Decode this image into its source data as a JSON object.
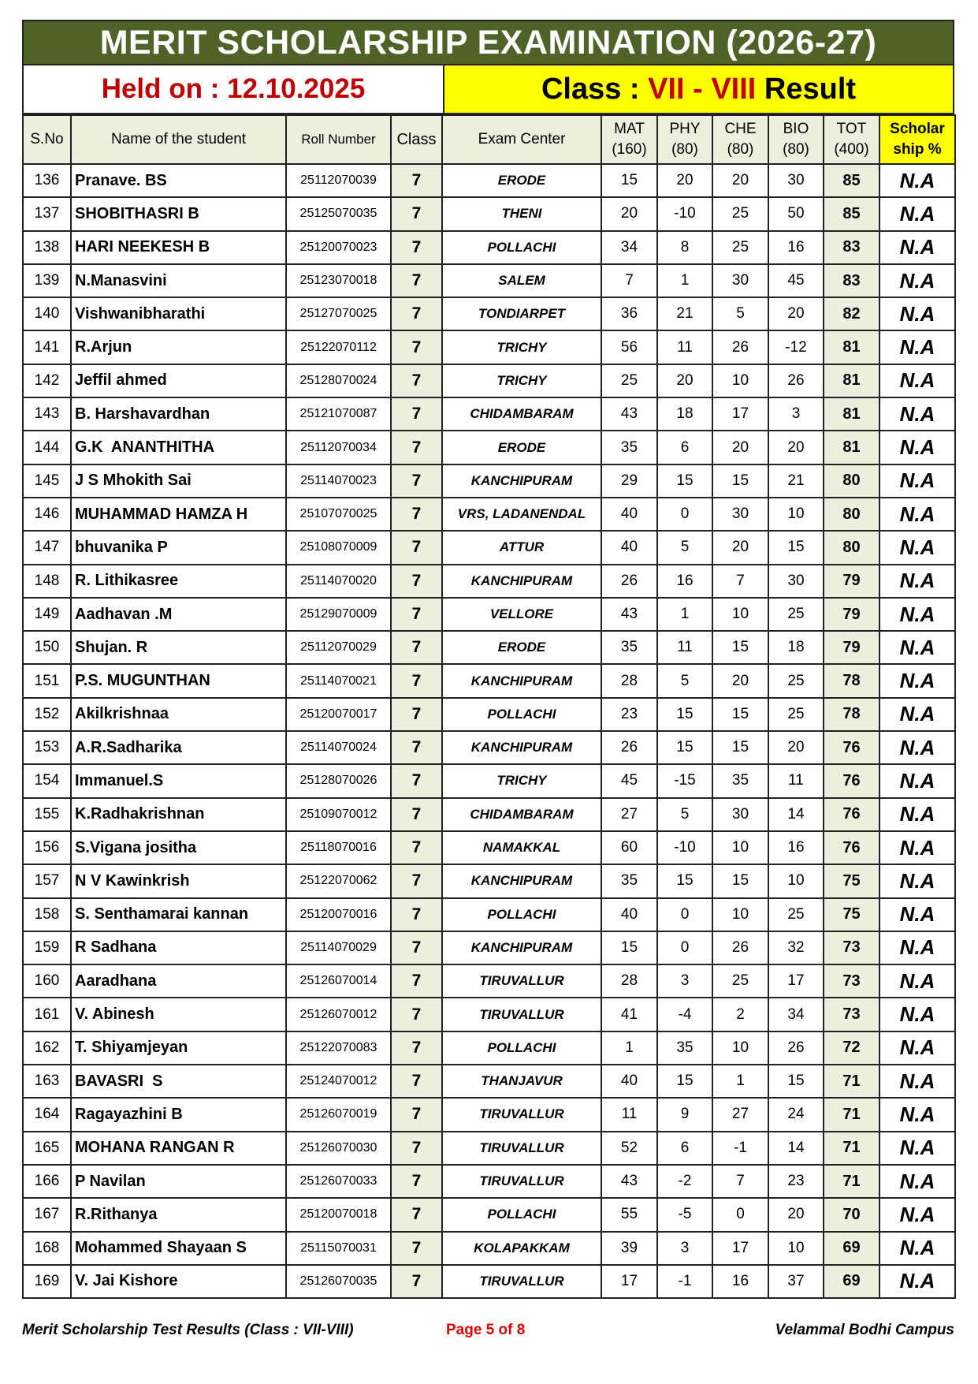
{
  "title": "MERIT SCHOLARSHIP EXAMINATION (2026-27)",
  "held_on": "Held on : 12.10.2025",
  "class_label": {
    "prefix": "Class : ",
    "classes": "VII - VIII",
    "suffix": " Result"
  },
  "colors": {
    "title_bg": "#4f6228",
    "highlight_yellow": "#ffff00",
    "red": "#c00000",
    "cell_green": "#ebf1de"
  },
  "headers": {
    "sno": "S.No",
    "name": "Name of the student",
    "roll": "Roll Number",
    "class": "Class",
    "center": "Exam Center",
    "mat": "MAT",
    "mat_max": "(160)",
    "phy": "PHY",
    "phy_max": "(80)",
    "che": "CHE",
    "che_max": "(80)",
    "bio": "BIO",
    "bio_max": "(80)",
    "tot": "TOT",
    "tot_max": "(400)",
    "sch1": "Scholar",
    "sch2": "ship %"
  },
  "rows": [
    [
      "136",
      "Pranave. BS",
      "25112070039",
      "7",
      "ERODE",
      "15",
      "20",
      "20",
      "30",
      "85",
      "N.A"
    ],
    [
      "137",
      "SHOBITHASRI B",
      "25125070035",
      "7",
      "THENI",
      "20",
      "-10",
      "25",
      "50",
      "85",
      "N.A"
    ],
    [
      "138",
      "HARI NEEKESH B",
      "25120070023",
      "7",
      "POLLACHI",
      "34",
      "8",
      "25",
      "16",
      "83",
      "N.A"
    ],
    [
      "139",
      "N.Manasvini",
      "25123070018",
      "7",
      "SALEM",
      "7",
      "1",
      "30",
      "45",
      "83",
      "N.A"
    ],
    [
      "140",
      "Vishwanibharathi",
      "25127070025",
      "7",
      "TONDIARPET",
      "36",
      "21",
      "5",
      "20",
      "82",
      "N.A"
    ],
    [
      "141",
      "R.Arjun",
      "25122070112",
      "7",
      "TRICHY",
      "56",
      "11",
      "26",
      "-12",
      "81",
      "N.A"
    ],
    [
      "142",
      "Jeffil ahmed",
      "25128070024",
      "7",
      "TRICHY",
      "25",
      "20",
      "10",
      "26",
      "81",
      "N.A"
    ],
    [
      "143",
      "B. Harshavardhan",
      "25121070087",
      "7",
      "CHIDAMBARAM",
      "43",
      "18",
      "17",
      "3",
      "81",
      "N.A"
    ],
    [
      "144",
      "G.K  ANANTHITHA",
      "25112070034",
      "7",
      "ERODE",
      "35",
      "6",
      "20",
      "20",
      "81",
      "N.A"
    ],
    [
      "145",
      "J S Mhokith Sai",
      "25114070023",
      "7",
      "KANCHIPURAM",
      "29",
      "15",
      "15",
      "21",
      "80",
      "N.A"
    ],
    [
      "146",
      "MUHAMMAD HAMZA H",
      "25107070025",
      "7",
      "VRS, LADANENDAL",
      "40",
      "0",
      "30",
      "10",
      "80",
      "N.A"
    ],
    [
      "147",
      "bhuvanika P",
      "25108070009",
      "7",
      "ATTUR",
      "40",
      "5",
      "20",
      "15",
      "80",
      "N.A"
    ],
    [
      "148",
      "R. Lithikasree",
      "25114070020",
      "7",
      "KANCHIPURAM",
      "26",
      "16",
      "7",
      "30",
      "79",
      "N.A"
    ],
    [
      "149",
      "Aadhavan .M",
      "25129070009",
      "7",
      "VELLORE",
      "43",
      "1",
      "10",
      "25",
      "79",
      "N.A"
    ],
    [
      "150",
      "Shujan. R",
      "25112070029",
      "7",
      "ERODE",
      "35",
      "11",
      "15",
      "18",
      "79",
      "N.A"
    ],
    [
      "151",
      "P.S. MUGUNTHAN",
      "25114070021",
      "7",
      "KANCHIPURAM",
      "28",
      "5",
      "20",
      "25",
      "78",
      "N.A"
    ],
    [
      "152",
      "Akilkrishnaa",
      "25120070017",
      "7",
      "POLLACHI",
      "23",
      "15",
      "15",
      "25",
      "78",
      "N.A"
    ],
    [
      "153",
      "A.R.Sadharika",
      "25114070024",
      "7",
      "KANCHIPURAM",
      "26",
      "15",
      "15",
      "20",
      "76",
      "N.A"
    ],
    [
      "154",
      "Immanuel.S",
      "25128070026",
      "7",
      "TRICHY",
      "45",
      "-15",
      "35",
      "11",
      "76",
      "N.A"
    ],
    [
      "155",
      "K.Radhakrishnan",
      "25109070012",
      "7",
      "CHIDAMBARAM",
      "27",
      "5",
      "30",
      "14",
      "76",
      "N.A"
    ],
    [
      "156",
      "S.Vigana jositha",
      "25118070016",
      "7",
      "NAMAKKAL",
      "60",
      "-10",
      "10",
      "16",
      "76",
      "N.A"
    ],
    [
      "157",
      "N V Kawinkrish",
      "25122070062",
      "7",
      "KANCHIPURAM",
      "35",
      "15",
      "15",
      "10",
      "75",
      "N.A"
    ],
    [
      "158",
      "S. Senthamarai kannan",
      "25120070016",
      "7",
      "POLLACHI",
      "40",
      "0",
      "10",
      "25",
      "75",
      "N.A"
    ],
    [
      "159",
      "R Sadhana",
      "25114070029",
      "7",
      "KANCHIPURAM",
      "15",
      "0",
      "26",
      "32",
      "73",
      "N.A"
    ],
    [
      "160",
      "Aaradhana",
      "25126070014",
      "7",
      "TIRUVALLUR",
      "28",
      "3",
      "25",
      "17",
      "73",
      "N.A"
    ],
    [
      "161",
      "V. Abinesh",
      "25126070012",
      "7",
      "TIRUVALLUR",
      "41",
      "-4",
      "2",
      "34",
      "73",
      "N.A"
    ],
    [
      "162",
      "T. Shiyamjeyan",
      "25122070083",
      "7",
      "POLLACHI",
      "1",
      "35",
      "10",
      "26",
      "72",
      "N.A"
    ],
    [
      "163",
      "BAVASRI  S",
      "25124070012",
      "7",
      "THANJAVUR",
      "40",
      "15",
      "1",
      "15",
      "71",
      "N.A"
    ],
    [
      "164",
      "Ragayazhini B",
      "25126070019",
      "7",
      "TIRUVALLUR",
      "11",
      "9",
      "27",
      "24",
      "71",
      "N.A"
    ],
    [
      "165",
      "MOHANA RANGAN R",
      "25126070030",
      "7",
      "TIRUVALLUR",
      "52",
      "6",
      "-1",
      "14",
      "71",
      "N.A"
    ],
    [
      "166",
      "P Navilan",
      "25126070033",
      "7",
      "TIRUVALLUR",
      "43",
      "-2",
      "7",
      "23",
      "71",
      "N.A"
    ],
    [
      "167",
      "R.Rithanya",
      "25120070018",
      "7",
      "POLLACHI",
      "55",
      "-5",
      "0",
      "20",
      "70",
      "N.A"
    ],
    [
      "168",
      "Mohammed Shayaan S",
      "25115070031",
      "7",
      "KOLAPAKKAM",
      "39",
      "3",
      "17",
      "10",
      "69",
      "N.A"
    ],
    [
      "169",
      "V. Jai Kishore",
      "25126070035",
      "7",
      "TIRUVALLUR",
      "17",
      "-1",
      "16",
      "37",
      "69",
      "N.A"
    ]
  ],
  "footer": {
    "left": "Merit Scholarship Test Results (Class : VII-VIII)",
    "page": "Page 5 of 8",
    "right": "Velammal Bodhi Campus"
  }
}
